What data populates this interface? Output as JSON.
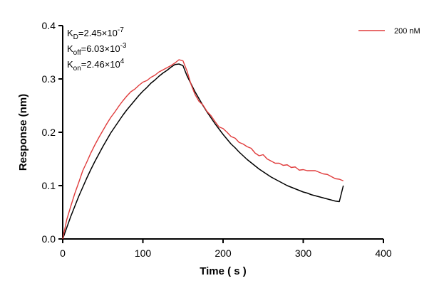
{
  "chart_data": {
    "type": "line",
    "xlabel": "Time ( s )",
    "ylabel": "Response (nm)",
    "xlim": [
      0,
      400
    ],
    "ylim": [
      0.0,
      0.4
    ],
    "x_ticks": [
      0,
      100,
      200,
      300,
      400
    ],
    "x_tick_labels": [
      "0",
      "100",
      "200",
      "300",
      "400"
    ],
    "y_ticks": [
      0.0,
      0.1,
      0.2,
      0.3,
      0.4
    ],
    "y_tick_labels": [
      "0.0",
      "0.1",
      "0.2",
      "0.3",
      "0.4"
    ],
    "grid": false,
    "legend_position": "top-right",
    "annotations": [
      {
        "main": "K",
        "sub": "D",
        "value": "=2.45×10",
        "sup": "-7"
      },
      {
        "main": "K",
        "sub": "off",
        "value": "=6.03×10",
        "sup": "-3"
      },
      {
        "main": "K",
        "sub": "on",
        "value": "=2.46×10",
        "sup": "4"
      }
    ],
    "series": [
      {
        "name": "200 nM",
        "color": "#e03c3c",
        "x": [
          0,
          5,
          10,
          15,
          20,
          25,
          30,
          35,
          40,
          45,
          50,
          55,
          60,
          65,
          70,
          75,
          80,
          85,
          90,
          95,
          100,
          105,
          110,
          115,
          120,
          125,
          130,
          135,
          140,
          145,
          150,
          155,
          160,
          165,
          170,
          175,
          180,
          185,
          190,
          195,
          200,
          205,
          210,
          215,
          220,
          225,
          230,
          235,
          240,
          245,
          250,
          255,
          260,
          265,
          270,
          275,
          280,
          285,
          290,
          295,
          300,
          305,
          310,
          315,
          320,
          325,
          330,
          335,
          340,
          345,
          350
        ],
        "y": [
          0.0,
          0.036,
          0.061,
          0.085,
          0.106,
          0.128,
          0.144,
          0.161,
          0.176,
          0.19,
          0.203,
          0.216,
          0.228,
          0.238,
          0.249,
          0.259,
          0.268,
          0.276,
          0.281,
          0.288,
          0.294,
          0.297,
          0.303,
          0.307,
          0.313,
          0.317,
          0.321,
          0.325,
          0.33,
          0.336,
          0.334,
          0.315,
          0.29,
          0.271,
          0.258,
          0.251,
          0.239,
          0.231,
          0.22,
          0.21,
          0.207,
          0.2,
          0.192,
          0.189,
          0.181,
          0.178,
          0.173,
          0.17,
          0.161,
          0.156,
          0.158,
          0.15,
          0.146,
          0.142,
          0.142,
          0.138,
          0.139,
          0.134,
          0.135,
          0.129,
          0.13,
          0.128,
          0.128,
          0.128,
          0.125,
          0.122,
          0.121,
          0.117,
          0.113,
          0.112,
          0.109
        ]
      },
      {
        "name": "",
        "color": "#000000",
        "x": [
          0,
          5,
          10,
          15,
          20,
          25,
          30,
          35,
          40,
          45,
          50,
          55,
          60,
          65,
          70,
          75,
          80,
          85,
          90,
          95,
          100,
          105,
          110,
          115,
          120,
          125,
          130,
          135,
          140,
          145,
          150,
          155,
          160,
          165,
          170,
          175,
          180,
          185,
          190,
          195,
          200,
          205,
          210,
          215,
          220,
          225,
          230,
          235,
          240,
          245,
          250,
          255,
          260,
          265,
          270,
          275,
          280,
          285,
          290,
          295,
          300,
          305,
          310,
          315,
          320,
          325,
          330,
          335,
          340,
          345,
          350
        ],
        "y": [
          0.0,
          0.021,
          0.042,
          0.061,
          0.08,
          0.097,
          0.114,
          0.13,
          0.145,
          0.159,
          0.173,
          0.186,
          0.199,
          0.21,
          0.221,
          0.232,
          0.242,
          0.251,
          0.26,
          0.269,
          0.277,
          0.284,
          0.292,
          0.298,
          0.305,
          0.311,
          0.316,
          0.322,
          0.327,
          0.328,
          0.325,
          0.306,
          0.291,
          0.276,
          0.263,
          0.25,
          0.238,
          0.227,
          0.216,
          0.206,
          0.196,
          0.187,
          0.178,
          0.171,
          0.163,
          0.156,
          0.149,
          0.143,
          0.137,
          0.131,
          0.126,
          0.121,
          0.116,
          0.112,
          0.108,
          0.104,
          0.1,
          0.097,
          0.094,
          0.091,
          0.088,
          0.086,
          0.083,
          0.081,
          0.079,
          0.077,
          0.075,
          0.073,
          0.071,
          0.07,
          0.1
        ]
      }
    ]
  }
}
